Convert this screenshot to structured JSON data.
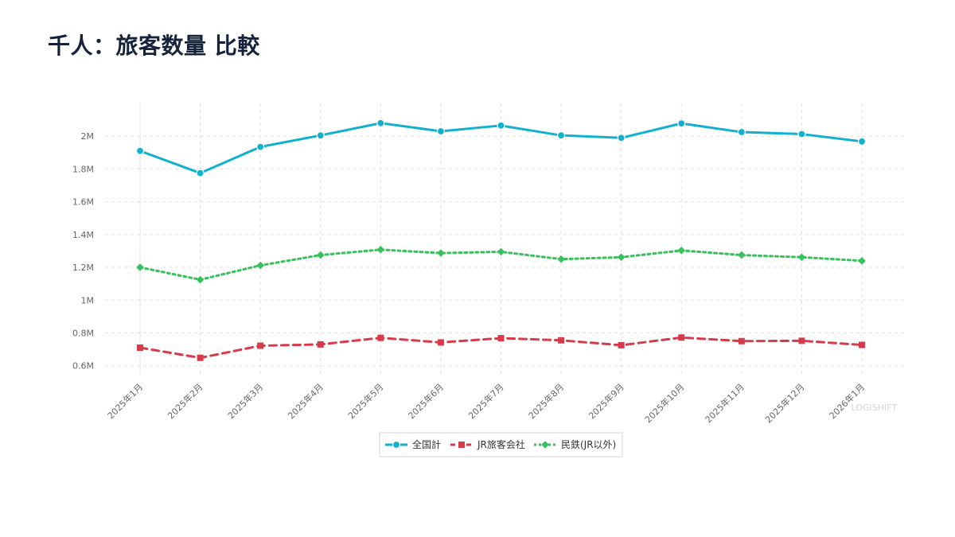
{
  "page": {
    "title": "千人：旅客数量 比較",
    "watermark": "LOGISHIFT"
  },
  "chart_data": {
    "type": "line",
    "title": "千人：旅客数量 比較",
    "categories": [
      "2025年1月",
      "2025年2月",
      "2025年3月",
      "2025年4月",
      "2025年5月",
      "2025年6月",
      "2025年7月",
      "2025年8月",
      "2025年9月",
      "2025年10月",
      "2025年11月",
      "2025年12月",
      "2026年1月"
    ],
    "ylim": [
      550000,
      2200000
    ],
    "yticks": [
      600000,
      800000,
      1000000,
      1200000,
      1400000,
      1600000,
      1800000,
      2000000
    ],
    "ytick_labels": [
      "0.6M",
      "0.8M",
      "1M",
      "1.2M",
      "1.4M",
      "1.6M",
      "1.8M",
      "2M"
    ],
    "grid": true,
    "legend_position": "bottom-center",
    "series": [
      {
        "name": "全国計",
        "color": "#12b0cf",
        "marker": "circle",
        "line_style": "solid",
        "values": [
          1910000,
          1775000,
          1935000,
          2005000,
          2080000,
          2030000,
          2065000,
          2005000,
          1990000,
          2078000,
          2025000,
          2013000,
          1968000
        ]
      },
      {
        "name": "JR旅客会社",
        "color": "#d93a49",
        "marker": "square",
        "line_style": "dashed",
        "values": [
          710000,
          648000,
          722000,
          730000,
          770000,
          742000,
          768000,
          755000,
          725000,
          772000,
          750000,
          752000,
          727000
        ]
      },
      {
        "name": "民鉄(JR以外)",
        "color": "#35c25a",
        "marker": "diamond",
        "line_style": "dotted",
        "values": [
          1200000,
          1125000,
          1212000,
          1275000,
          1308000,
          1287000,
          1295000,
          1250000,
          1262000,
          1303000,
          1275000,
          1262000,
          1240000
        ]
      }
    ]
  }
}
